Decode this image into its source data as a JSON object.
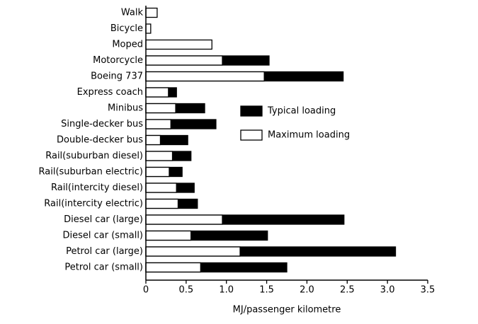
{
  "chart_data": {
    "type": "overlaid-hbar",
    "x_label": "MJ/passenger kilometre",
    "categories": [
      "Walk",
      "Bicycle",
      "Moped",
      "Motorcycle",
      "Boeing 737",
      "Express coach",
      "Minibus",
      "Single-decker bus",
      "Double-decker bus",
      "Rail(suburban diesel)",
      "Rail(suburban electric)",
      "Rail(intercity diesel)",
      "Rail(intercity electric)",
      "Diesel car (large)",
      "Diesel car (small)",
      "Petrol car (large)",
      "Petrol car (small)"
    ],
    "series": [
      {
        "name": "Typical loading",
        "color": "#000000",
        "values": [
          null,
          null,
          null,
          1.53,
          2.45,
          0.38,
          0.73,
          0.87,
          0.52,
          0.56,
          0.45,
          0.6,
          0.64,
          2.46,
          1.51,
          3.1,
          1.75
        ]
      },
      {
        "name": "Maximum loading",
        "color": "#ffffff",
        "values": [
          0.14,
          0.06,
          0.82,
          0.95,
          1.47,
          0.28,
          0.37,
          0.31,
          0.18,
          0.33,
          0.29,
          0.38,
          0.4,
          0.95,
          0.56,
          1.17,
          0.68
        ]
      }
    ],
    "xlim": [
      0,
      3.5
    ],
    "xticks": [
      0,
      0.5,
      {
        "value": 1,
        "label": "1.0"
      },
      1.5,
      {
        "value": 2,
        "label": "2.0"
      },
      2.5,
      {
        "value": 3,
        "label": "3.0"
      },
      3.5
    ]
  }
}
